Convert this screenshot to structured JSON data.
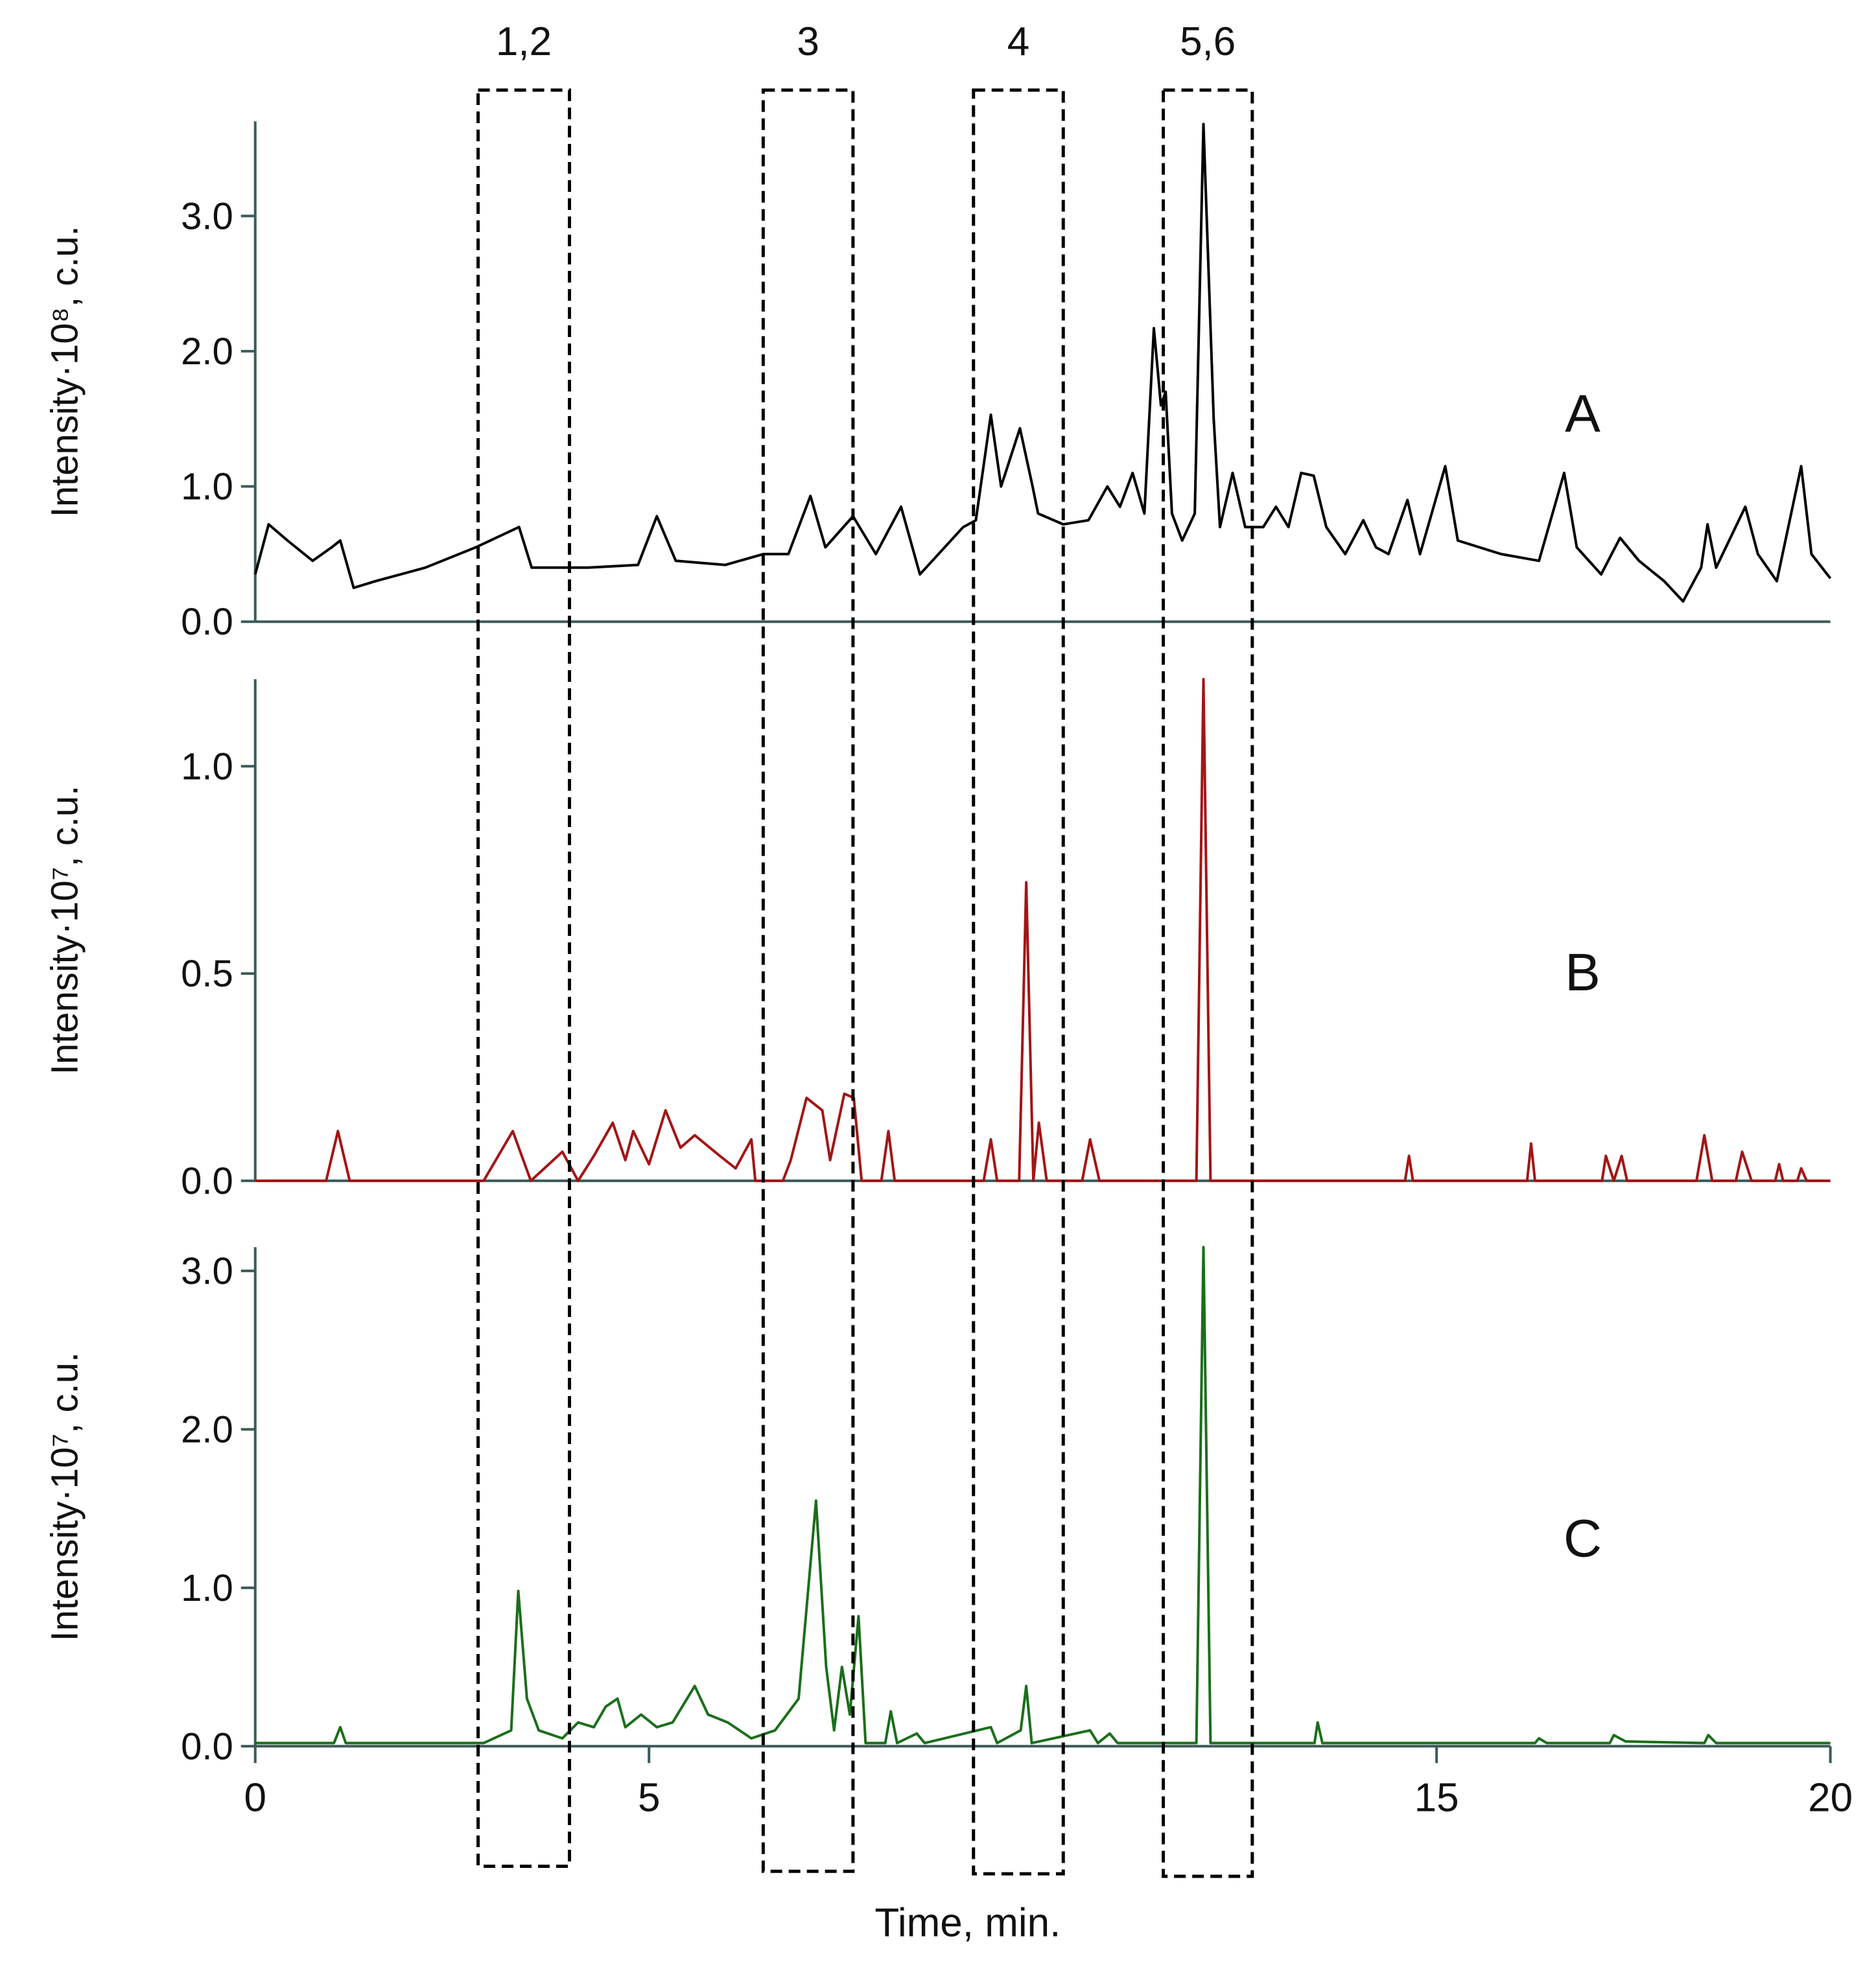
{
  "chart_data": [
    {
      "type": "line",
      "label": "A",
      "ylabel": "Intensity·10⁸, c.u.",
      "color": "#000000",
      "xlim": [
        0,
        20
      ],
      "ylim": [
        0,
        3.7
      ],
      "yticks": [
        {
          "value": 0,
          "label": "0.0"
        },
        {
          "value": 1,
          "label": "1.0"
        },
        {
          "value": 2,
          "label": "2.0"
        },
        {
          "value": 3,
          "label": "3.0"
        }
      ],
      "x": [
        0,
        0.17,
        0.41,
        0.73,
        0.97,
        1.08,
        1.25,
        1.53,
        2.16,
        2.8,
        3.35,
        3.51,
        4.23,
        4.86,
        5.1,
        5.34,
        5.97,
        6.45,
        6.77,
        7.05,
        7.24,
        7.59,
        7.88,
        8.2,
        8.44,
        8.99,
        9.15,
        9.34,
        9.47,
        9.71,
        9.87,
        9.94,
        10.26,
        10.58,
        10.82,
        10.98,
        11.14,
        11.29,
        11.41,
        11.5,
        11.56,
        11.64,
        11.77,
        11.93,
        12.04,
        12.17,
        12.25,
        12.41,
        12.57,
        12.8,
        12.96,
        13.12,
        13.28,
        13.44,
        13.6,
        13.84,
        14.07,
        14.23,
        14.39,
        14.63,
        14.79,
        15.11,
        15.27,
        15.82,
        16.3,
        16.62,
        16.78,
        17.09,
        17.33,
        17.57,
        17.89,
        18.13,
        18.36,
        18.44,
        18.55,
        18.92,
        19.08,
        19.32,
        19.63,
        19.76,
        20
      ],
      "values": [
        0.35,
        0.72,
        0.6,
        0.45,
        0.55,
        0.6,
        0.25,
        0.3,
        0.4,
        0.55,
        0.7,
        0.4,
        0.4,
        0.42,
        0.78,
        0.45,
        0.42,
        0.5,
        0.5,
        0.93,
        0.55,
        0.78,
        0.5,
        0.85,
        0.35,
        0.7,
        0.75,
        1.53,
        1.0,
        1.43,
        1.0,
        0.8,
        0.72,
        0.75,
        1.0,
        0.85,
        1.1,
        0.8,
        2.17,
        1.6,
        1.7,
        0.8,
        0.6,
        0.8,
        3.68,
        1.5,
        0.7,
        1.1,
        0.7,
        0.7,
        0.85,
        0.7,
        1.1,
        1.08,
        0.7,
        0.5,
        0.75,
        0.55,
        0.5,
        0.9,
        0.5,
        1.15,
        0.6,
        0.5,
        0.45,
        1.1,
        0.55,
        0.35,
        0.62,
        0.45,
        0.3,
        0.15,
        0.4,
        0.72,
        0.4,
        0.85,
        0.5,
        0.3,
        1.15,
        0.5,
        0.32
      ]
    },
    {
      "type": "line",
      "label": "B",
      "ylabel": "Intensity·10⁷, c.u.",
      "color": "#a31515",
      "xlim": [
        0,
        20
      ],
      "ylim": [
        0,
        1.21
      ],
      "yticks": [
        {
          "value": 0,
          "label": "0.0"
        },
        0.5,
        {
          "value": 1,
          "label": "1.0"
        }
      ],
      "x": [
        0,
        0.9,
        1.05,
        1.2,
        2.9,
        3.27,
        3.5,
        3.9,
        4.1,
        4.3,
        4.54,
        4.7,
        4.8,
        5.0,
        5.21,
        5.4,
        5.58,
        5.9,
        6.1,
        6.3,
        6.35,
        6.7,
        6.8,
        7.0,
        7.2,
        7.3,
        7.48,
        7.6,
        7.7,
        7.95,
        8.04,
        8.12,
        9.25,
        9.34,
        9.42,
        9.7,
        9.79,
        9.88,
        9.95,
        10.05,
        10.5,
        10.6,
        10.72,
        11.95,
        12.04,
        12.13,
        14.6,
        14.65,
        14.7,
        16.15,
        16.2,
        16.25,
        17.1,
        17.15,
        17.25,
        17.35,
        17.42,
        18.3,
        18.4,
        18.5,
        18.8,
        18.88,
        19.0,
        19.3,
        19.35,
        19.4,
        19.58,
        19.63,
        19.7,
        20
      ],
      "values": [
        0,
        0,
        0.12,
        0,
        0,
        0.12,
        0,
        0.07,
        0,
        0.06,
        0.14,
        0.05,
        0.12,
        0.04,
        0.17,
        0.08,
        0.11,
        0.06,
        0.03,
        0.1,
        0,
        0,
        0.05,
        0.2,
        0.17,
        0.05,
        0.21,
        0.2,
        0,
        0,
        0.12,
        0,
        0,
        0.1,
        0,
        0,
        0.72,
        0,
        0.14,
        0,
        0,
        0.1,
        0,
        0,
        1.21,
        0,
        0,
        0.06,
        0,
        0,
        0.09,
        0,
        0,
        0.06,
        0,
        0.06,
        0,
        0,
        0.11,
        0,
        0,
        0.07,
        0,
        0,
        0.04,
        0,
        0,
        0.03,
        0,
        0
      ]
    },
    {
      "type": "line",
      "label": "C",
      "ylabel": "Intensity·10⁷, c.u.",
      "color": "#1b6e1b",
      "xlim": [
        0,
        20
      ],
      "ylim": [
        0,
        3.15
      ],
      "yticks": [
        {
          "value": 0,
          "label": "0.0"
        },
        {
          "value": 1,
          "label": "1.0"
        },
        {
          "value": 2,
          "label": "2.0"
        },
        {
          "value": 3,
          "label": "3.0"
        }
      ],
      "xticks": [
        0,
        5,
        15,
        20
      ],
      "xlabel": "Time, min.",
      "x": [
        0,
        1.0,
        1.08,
        1.15,
        2.9,
        3.25,
        3.34,
        3.45,
        3.6,
        3.9,
        4.1,
        4.3,
        4.45,
        4.6,
        4.7,
        4.9,
        5.1,
        5.3,
        5.58,
        5.75,
        6.0,
        6.3,
        6.6,
        6.9,
        7.12,
        7.25,
        7.35,
        7.45,
        7.55,
        7.66,
        7.75,
        8.0,
        8.07,
        8.15,
        8.4,
        8.5,
        9.34,
        9.42,
        9.72,
        9.79,
        9.86,
        10.6,
        10.7,
        10.85,
        10.95,
        11.95,
        12.04,
        12.13,
        13.45,
        13.49,
        13.55,
        16.25,
        16.3,
        16.4,
        17.2,
        17.25,
        17.4,
        18.4,
        18.45,
        18.55,
        20
      ],
      "values": [
        0.02,
        0.02,
        0.12,
        0.02,
        0.02,
        0.1,
        0.98,
        0.3,
        0.1,
        0.05,
        0.15,
        0.12,
        0.25,
        0.3,
        0.12,
        0.2,
        0.12,
        0.15,
        0.38,
        0.2,
        0.15,
        0.05,
        0.1,
        0.3,
        1.55,
        0.5,
        0.1,
        0.5,
        0.2,
        0.82,
        0.02,
        0.02,
        0.22,
        0.02,
        0.08,
        0.02,
        0.12,
        0.02,
        0.1,
        0.38,
        0.02,
        0.1,
        0.02,
        0.08,
        0.02,
        0.02,
        3.15,
        0.02,
        0.02,
        0.15,
        0.02,
        0.02,
        0.05,
        0.02,
        0.02,
        0.07,
        0.03,
        0.02,
        0.07,
        0.02,
        0.02
      ]
    }
  ],
  "annotations": {
    "regions": [
      {
        "label": "1,2",
        "x": [
          2.83,
          3.99
        ]
      },
      {
        "label": "3",
        "x": [
          6.45,
          7.59
        ]
      },
      {
        "label": "4",
        "x": [
          9.12,
          10.26
        ]
      },
      {
        "label": "5,6",
        "x": [
          11.53,
          12.66
        ]
      }
    ]
  }
}
